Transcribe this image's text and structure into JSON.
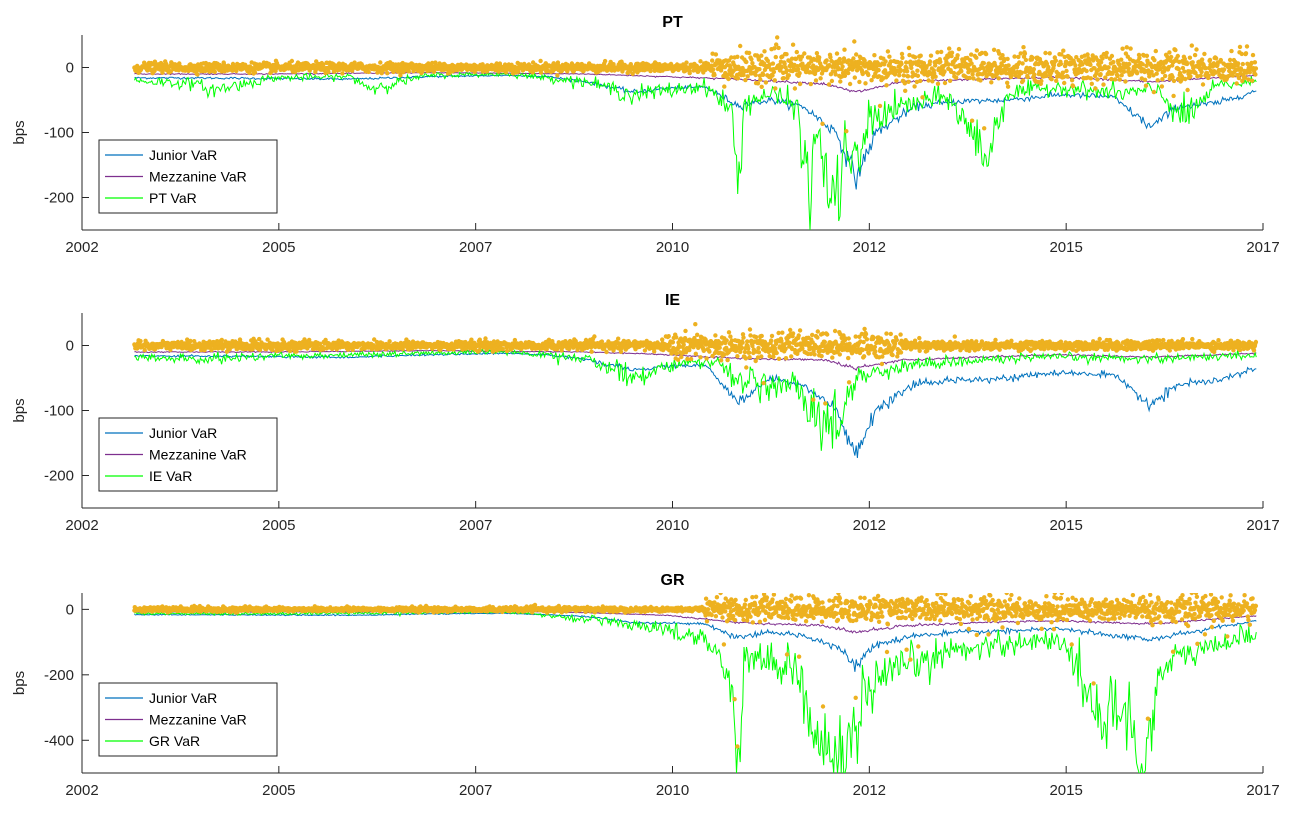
{
  "colors": {
    "junior": "#0072BD",
    "mezzanine": "#7E2F8E",
    "country": "#00FF00",
    "returns": "#EDB120",
    "axis": "#262626"
  },
  "chart_data": [
    {
      "type": "line",
      "title": "PT",
      "ylabel": "bps",
      "xlabel": "",
      "xlim": [
        "2002-01-01",
        "2017-01-01"
      ],
      "ylim": [
        -250,
        50
      ],
      "x_ticks": [
        "2002",
        "2005",
        "2007",
        "2010",
        "2012",
        "2015",
        "2017"
      ],
      "y_ticks": [
        -200,
        -100,
        0
      ],
      "grid": false,
      "legend": "bottom-left",
      "series": [
        {
          "name": "Junior VaR",
          "color_key": "junior",
          "points": [
            [
              "2002-09-01",
              -16
            ],
            [
              "2003-06-01",
              -16
            ],
            [
              "2004-06-01",
              -17
            ],
            [
              "2005-06-01",
              -18
            ],
            [
              "2006-06-01",
              -14
            ],
            [
              "2007-06-01",
              -12
            ],
            [
              "2007-12-01",
              -14
            ],
            [
              "2008-06-01",
              -22
            ],
            [
              "2009-01-01",
              -38
            ],
            [
              "2009-06-01",
              -32
            ],
            [
              "2009-12-01",
              -30
            ],
            [
              "2010-05-01",
              -58
            ],
            [
              "2010-10-01",
              -50
            ],
            [
              "2011-03-01",
              -60
            ],
            [
              "2011-08-01",
              -100
            ],
            [
              "2011-11-01",
              -170
            ],
            [
              "2012-02-01",
              -100
            ],
            [
              "2012-08-01",
              -60
            ],
            [
              "2013-03-01",
              -52
            ],
            [
              "2013-10-01",
              -50
            ],
            [
              "2014-06-01",
              -42
            ],
            [
              "2015-02-01",
              -45
            ],
            [
              "2015-08-01",
              -92
            ],
            [
              "2015-12-01",
              -60
            ],
            [
              "2016-06-01",
              -55
            ],
            [
              "2016-12-01",
              -36
            ]
          ]
        },
        {
          "name": "Mezzanine VaR",
          "color_key": "mezzanine",
          "points": [
            [
              "2002-09-01",
              -10
            ],
            [
              "2004-06-01",
              -10
            ],
            [
              "2006-06-01",
              -8
            ],
            [
              "2008-06-01",
              -10
            ],
            [
              "2009-06-01",
              -14
            ],
            [
              "2010-05-01",
              -18
            ],
            [
              "2011-06-01",
              -25
            ],
            [
              "2011-11-01",
              -38
            ],
            [
              "2012-06-01",
              -22
            ],
            [
              "2013-06-01",
              -18
            ],
            [
              "2014-06-01",
              -15
            ],
            [
              "2015-08-01",
              -22
            ],
            [
              "2016-12-01",
              -12
            ]
          ]
        },
        {
          "name": "PT VaR",
          "color_key": "country",
          "points": [
            [
              "2002-09-01",
              -20
            ],
            [
              "2003-06-01",
              -25
            ],
            [
              "2003-09-01",
              -35
            ],
            [
              "2004-06-01",
              -16
            ],
            [
              "2005-06-01",
              -14
            ],
            [
              "2005-09-01",
              -32
            ],
            [
              "2006-06-01",
              -12
            ],
            [
              "2007-06-01",
              -10
            ],
            [
              "2008-06-01",
              -22
            ],
            [
              "2009-01-01",
              -42
            ],
            [
              "2009-06-01",
              -36
            ],
            [
              "2009-12-01",
              -28
            ],
            [
              "2010-04-01",
              -65
            ],
            [
              "2010-05-01",
              -185
            ],
            [
              "2010-06-01",
              -55
            ],
            [
              "2010-10-01",
              -40
            ],
            [
              "2011-02-01",
              -60
            ],
            [
              "2011-04-01",
              -210
            ],
            [
              "2011-05-01",
              -90
            ],
            [
              "2011-07-01",
              -190
            ],
            [
              "2011-08-01",
              -230
            ],
            [
              "2011-09-01",
              -120
            ],
            [
              "2011-11-01",
              -160
            ],
            [
              "2012-01-01",
              -80
            ],
            [
              "2012-06-01",
              -60
            ],
            [
              "2013-01-01",
              -45
            ],
            [
              "2013-07-01",
              -138
            ],
            [
              "2013-10-01",
              -40
            ],
            [
              "2014-06-01",
              -30
            ],
            [
              "2015-03-01",
              -40
            ],
            [
              "2015-09-01",
              -35
            ],
            [
              "2016-01-01",
              -80
            ],
            [
              "2016-06-01",
              -28
            ],
            [
              "2016-12-01",
              -22
            ]
          ]
        }
      ],
      "scatter": {
        "name": "",
        "color_key": "returns",
        "calm_spread": 6,
        "stress_spread": 22,
        "stress_periods": [
          [
            "2010-01-01",
            "2016-12-01"
          ]
        ]
      }
    },
    {
      "type": "line",
      "title": "IE",
      "ylabel": "bps",
      "xlabel": "",
      "xlim": [
        "2002-01-01",
        "2017-01-01"
      ],
      "ylim": [
        -250,
        50
      ],
      "x_ticks": [
        "2002",
        "2005",
        "2007",
        "2010",
        "2012",
        "2015",
        "2017"
      ],
      "y_ticks": [
        -200,
        -100,
        0
      ],
      "grid": false,
      "legend": "bottom-left",
      "series": [
        {
          "name": "Junior VaR",
          "color_key": "junior",
          "points": [
            [
              "2002-09-01",
              -16
            ],
            [
              "2003-06-01",
              -16
            ],
            [
              "2004-06-01",
              -17
            ],
            [
              "2005-06-01",
              -18
            ],
            [
              "2006-06-01",
              -14
            ],
            [
              "2007-06-01",
              -12
            ],
            [
              "2007-12-01",
              -14
            ],
            [
              "2008-06-01",
              -22
            ],
            [
              "2009-01-01",
              -38
            ],
            [
              "2009-06-01",
              -32
            ],
            [
              "2009-12-01",
              -30
            ],
            [
              "2010-05-01",
              -88
            ],
            [
              "2010-10-01",
              -50
            ],
            [
              "2011-03-01",
              -60
            ],
            [
              "2011-08-01",
              -100
            ],
            [
              "2011-11-01",
              -172
            ],
            [
              "2012-02-01",
              -100
            ],
            [
              "2012-08-01",
              -60
            ],
            [
              "2013-03-01",
              -52
            ],
            [
              "2013-10-01",
              -50
            ],
            [
              "2014-06-01",
              -42
            ],
            [
              "2015-02-01",
              -45
            ],
            [
              "2015-08-01",
              -92
            ],
            [
              "2015-12-01",
              -60
            ],
            [
              "2016-06-01",
              -55
            ],
            [
              "2016-12-01",
              -35
            ]
          ]
        },
        {
          "name": "Mezzanine VaR",
          "color_key": "mezzanine",
          "points": [
            [
              "2002-09-01",
              -10
            ],
            [
              "2004-06-01",
              -10
            ],
            [
              "2006-06-01",
              -8
            ],
            [
              "2008-06-01",
              -10
            ],
            [
              "2009-06-01",
              -14
            ],
            [
              "2010-05-01",
              -20
            ],
            [
              "2011-06-01",
              -22
            ],
            [
              "2011-11-01",
              -35
            ],
            [
              "2012-06-01",
              -22
            ],
            [
              "2013-06-01",
              -18
            ],
            [
              "2014-06-01",
              -14
            ],
            [
              "2015-08-01",
              -18
            ],
            [
              "2016-12-01",
              -12
            ]
          ]
        },
        {
          "name": "IE VaR",
          "color_key": "country",
          "points": [
            [
              "2002-09-01",
              -18
            ],
            [
              "2003-06-01",
              -22
            ],
            [
              "2004-06-01",
              -16
            ],
            [
              "2005-06-01",
              -14
            ],
            [
              "2006-06-01",
              -12
            ],
            [
              "2007-06-01",
              -10
            ],
            [
              "2008-06-01",
              -20
            ],
            [
              "2009-01-01",
              -50
            ],
            [
              "2009-06-01",
              -30
            ],
            [
              "2010-02-01",
              -25
            ],
            [
              "2010-05-01",
              -50
            ],
            [
              "2010-10-01",
              -72
            ],
            [
              "2011-01-01",
              -50
            ],
            [
              "2011-06-01",
              -128
            ],
            [
              "2011-09-01",
              -100
            ],
            [
              "2011-11-01",
              -50
            ],
            [
              "2012-03-01",
              -38
            ],
            [
              "2012-09-01",
              -28
            ],
            [
              "2013-06-01",
              -22
            ],
            [
              "2014-06-01",
              -18
            ],
            [
              "2015-08-01",
              -20
            ],
            [
              "2016-12-01",
              -15
            ]
          ]
        }
      ],
      "scatter": {
        "name": "",
        "color_key": "returns",
        "calm_spread": 6,
        "stress_spread": 18,
        "stress_periods": [
          [
            "2009-06-01",
            "2012-06-01"
          ]
        ]
      }
    },
    {
      "type": "line",
      "title": "GR",
      "ylabel": "bps",
      "xlabel": "",
      "xlim": [
        "2002-01-01",
        "2017-01-01"
      ],
      "ylim": [
        -500,
        50
      ],
      "x_ticks": [
        "2002",
        "2005",
        "2007",
        "2010",
        "2012",
        "2015",
        "2017"
      ],
      "y_ticks": [
        -400,
        -200,
        0
      ],
      "grid": false,
      "legend": "bottom-left",
      "series": [
        {
          "name": "Junior VaR",
          "color_key": "junior",
          "points": [
            [
              "2002-09-01",
              -16
            ],
            [
              "2004-06-01",
              -17
            ],
            [
              "2005-06-01",
              -18
            ],
            [
              "2006-06-01",
              -14
            ],
            [
              "2007-06-01",
              -12
            ],
            [
              "2008-06-01",
              -22
            ],
            [
              "2009-01-01",
              -40
            ],
            [
              "2009-12-01",
              -45
            ],
            [
              "2010-05-01",
              -88
            ],
            [
              "2010-10-01",
              -70
            ],
            [
              "2011-03-01",
              -80
            ],
            [
              "2011-08-01",
              -110
            ],
            [
              "2011-11-01",
              -170
            ],
            [
              "2012-02-01",
              -110
            ],
            [
              "2012-08-01",
              -80
            ],
            [
              "2013-03-01",
              -70
            ],
            [
              "2014-06-01",
              -60
            ],
            [
              "2015-08-01",
              -92
            ],
            [
              "2016-06-01",
              -55
            ],
            [
              "2016-12-01",
              -35
            ]
          ]
        },
        {
          "name": "Mezzanine VaR",
          "color_key": "mezzanine",
          "points": [
            [
              "2002-09-01",
              -8
            ],
            [
              "2005-06-01",
              -8
            ],
            [
              "2007-06-01",
              -6
            ],
            [
              "2008-06-01",
              -10
            ],
            [
              "2009-06-01",
              -18
            ],
            [
              "2010-05-01",
              -40
            ],
            [
              "2011-06-01",
              -50
            ],
            [
              "2011-11-01",
              -70
            ],
            [
              "2012-06-01",
              -50
            ],
            [
              "2013-06-01",
              -40
            ],
            [
              "2014-06-01",
              -35
            ],
            [
              "2015-08-01",
              -45
            ],
            [
              "2016-12-01",
              -20
            ]
          ]
        },
        {
          "name": "GR VaR",
          "color_key": "country",
          "points": [
            [
              "2002-09-01",
              -12
            ],
            [
              "2004-06-01",
              -14
            ],
            [
              "2005-06-01",
              -12
            ],
            [
              "2007-06-01",
              -8
            ],
            [
              "2008-06-01",
              -30
            ],
            [
              "2009-06-01",
              -60
            ],
            [
              "2009-12-01",
              -90
            ],
            [
              "2010-04-01",
              -200
            ],
            [
              "2010-05-01",
              -500
            ],
            [
              "2010-06-01",
              -150
            ],
            [
              "2010-10-01",
              -160
            ],
            [
              "2011-02-01",
              -180
            ],
            [
              "2011-04-01",
              -330
            ],
            [
              "2011-06-01",
              -400
            ],
            [
              "2011-08-01",
              -500
            ],
            [
              "2011-10-01",
              -420
            ],
            [
              "2011-12-01",
              -300
            ],
            [
              "2012-02-01",
              -240
            ],
            [
              "2012-06-01",
              -180
            ],
            [
              "2013-01-01",
              -130
            ],
            [
              "2013-06-01",
              -110
            ],
            [
              "2014-01-01",
              -100
            ],
            [
              "2014-06-01",
              -90
            ],
            [
              "2014-10-01",
              -230
            ],
            [
              "2015-01-01",
              -350
            ],
            [
              "2015-04-01",
              -300
            ],
            [
              "2015-07-01",
              -500
            ],
            [
              "2015-09-01",
              -200
            ],
            [
              "2016-01-01",
              -140
            ],
            [
              "2016-06-01",
              -110
            ],
            [
              "2016-12-01",
              -70
            ]
          ]
        }
      ],
      "scatter": {
        "name": "",
        "color_key": "returns",
        "calm_spread": 6,
        "stress_spread": 35,
        "stress_periods": [
          [
            "2009-12-01",
            "2016-12-01"
          ]
        ]
      }
    }
  ]
}
